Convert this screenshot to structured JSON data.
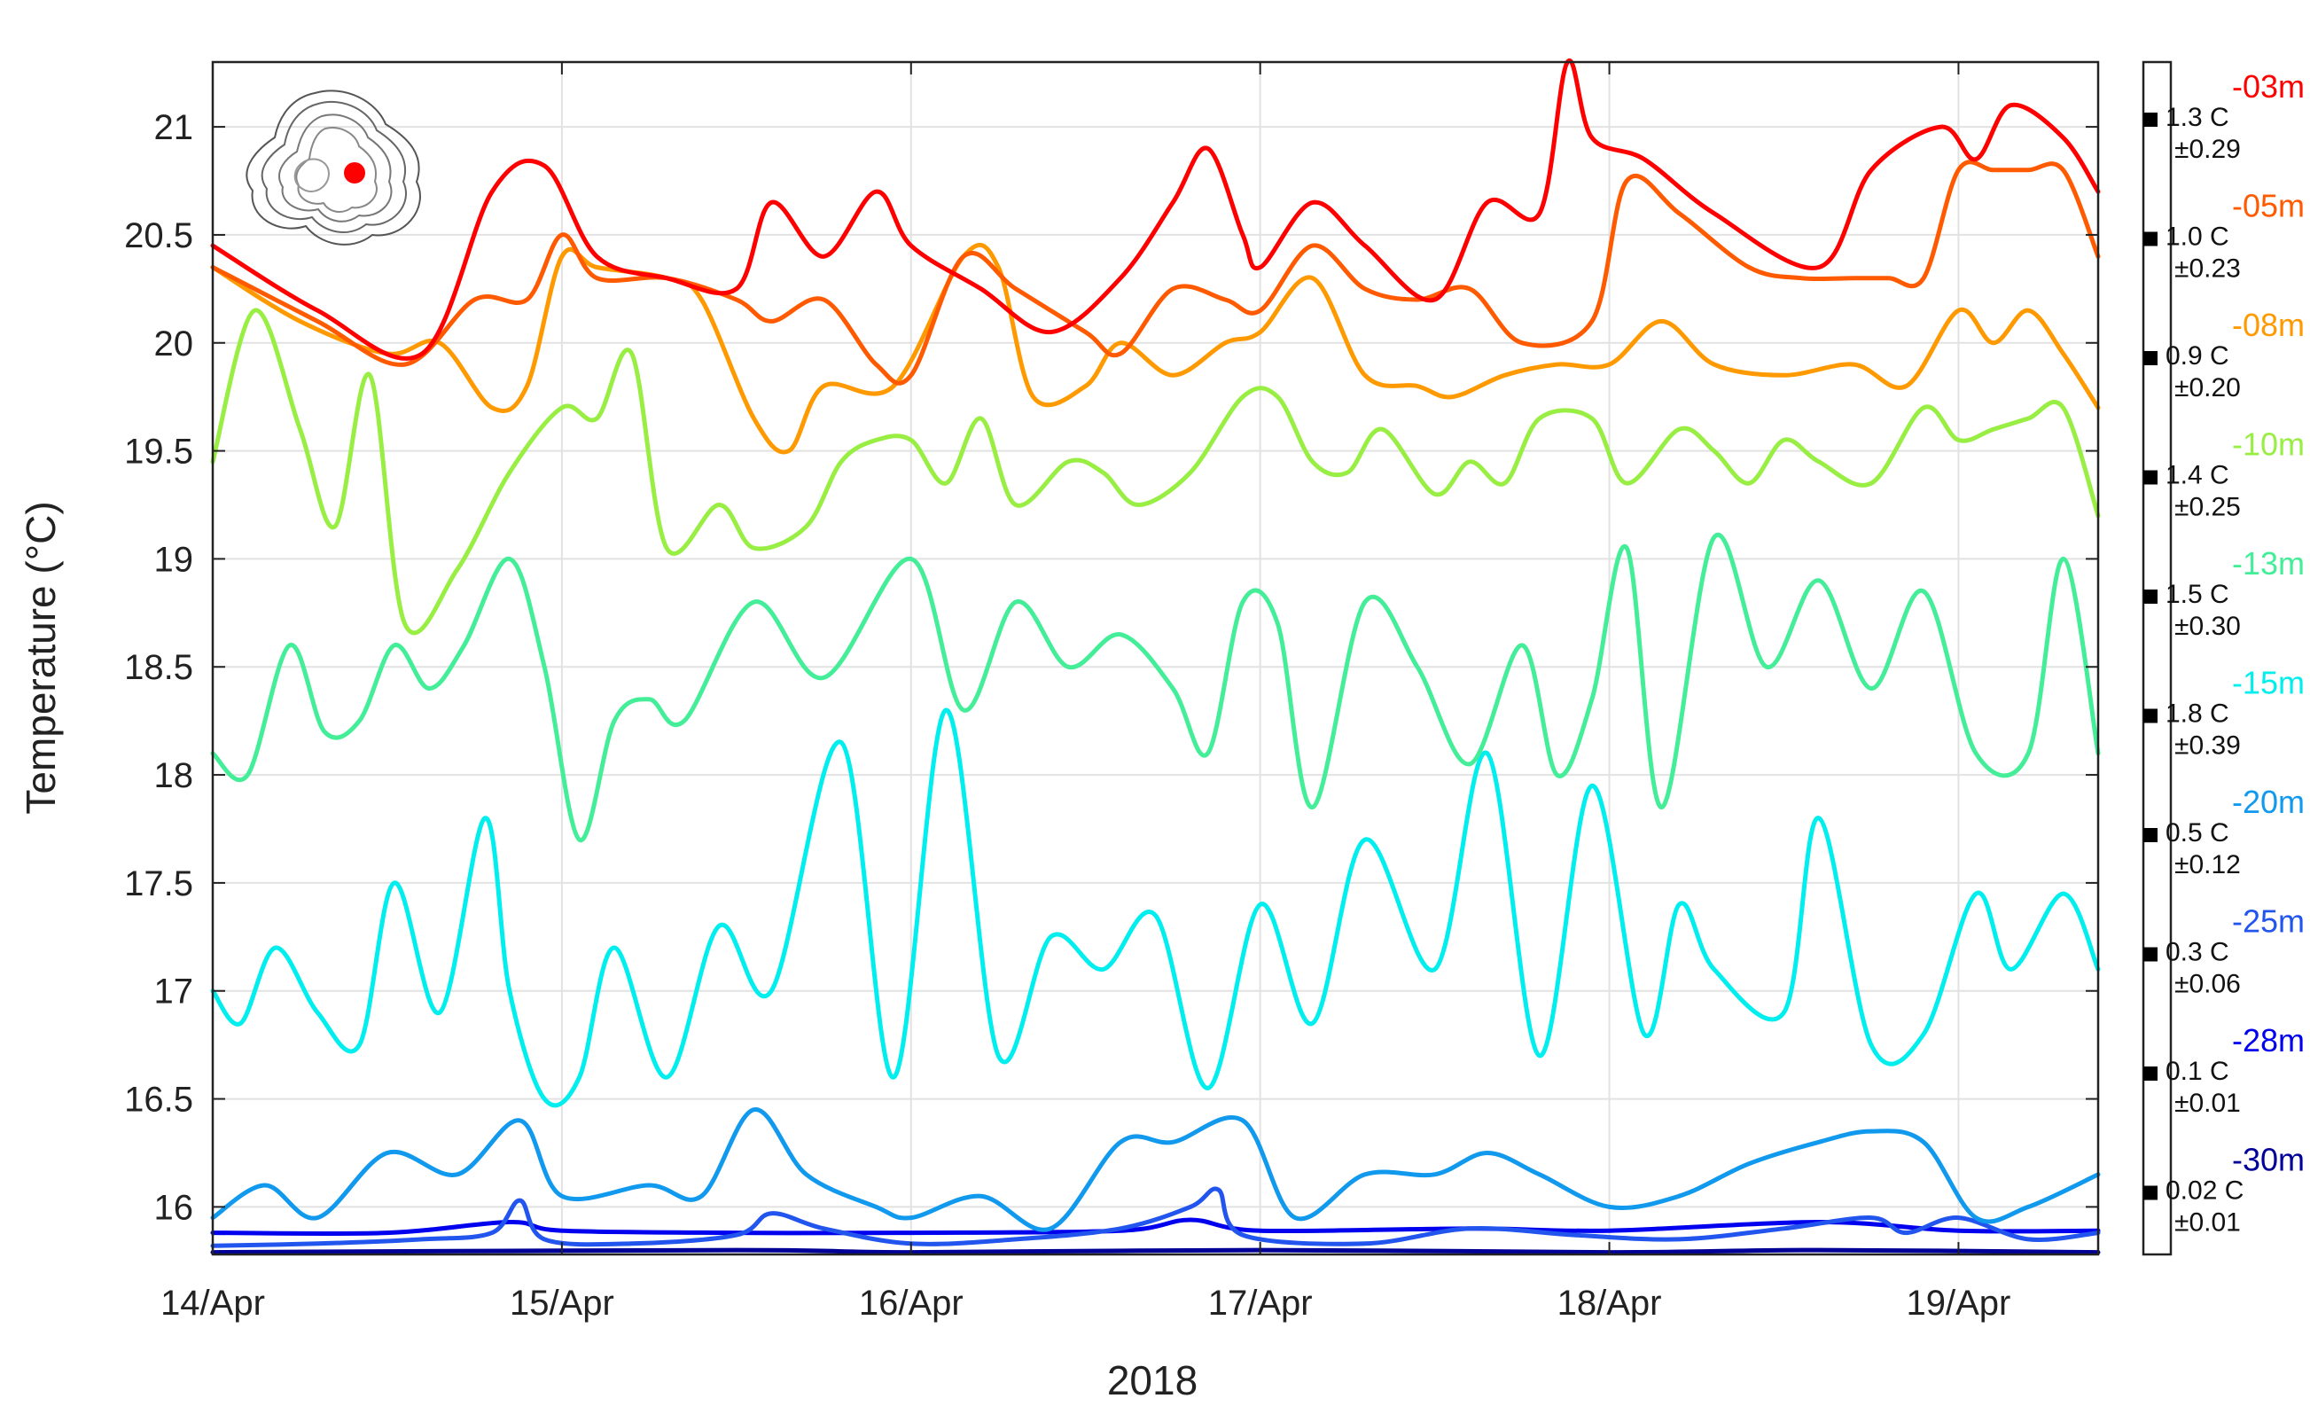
{
  "chart_data": {
    "type": "line",
    "title": "",
    "xlabel": "2018",
    "ylabel": "Temperature (°C)",
    "xlim": [
      0,
      5.4
    ],
    "ylim": [
      15.78,
      21.3
    ],
    "x_ticks": [
      {
        "value": 0,
        "label": "14/Apr"
      },
      {
        "value": 1,
        "label": "15/Apr"
      },
      {
        "value": 2,
        "label": "16/Apr"
      },
      {
        "value": 3,
        "label": "17/Apr"
      },
      {
        "value": 4,
        "label": "18/Apr"
      },
      {
        "value": 5,
        "label": "19/Apr"
      }
    ],
    "y_ticks": [
      {
        "value": 16,
        "label": "16"
      },
      {
        "value": 16.5,
        "label": "16.5"
      },
      {
        "value": 17,
        "label": "17"
      },
      {
        "value": 17.5,
        "label": "17.5"
      },
      {
        "value": 18,
        "label": "18"
      },
      {
        "value": 18.5,
        "label": "18.5"
      },
      {
        "value": 19,
        "label": "19"
      },
      {
        "value": 19.5,
        "label": "19.5"
      },
      {
        "value": 20,
        "label": "20"
      },
      {
        "value": 20.5,
        "label": "20.5"
      },
      {
        "value": 21,
        "label": "21"
      }
    ],
    "grid": true,
    "inset_marker": {
      "color": "#ff0000",
      "icon": "lake-bathymetry-icon"
    },
    "series": [
      {
        "name": "-03m",
        "color": "#ff0000",
        "range": "1.3 C",
        "std": "±0.29",
        "range_value": 1.3,
        "x": [
          0,
          0.3,
          0.6,
          0.8,
          0.95,
          1.1,
          1.3,
          1.5,
          1.6,
          1.75,
          1.9,
          2.0,
          2.2,
          2.4,
          2.6,
          2.75,
          2.85,
          2.95,
          3.0,
          3.15,
          3.3,
          3.5,
          3.65,
          3.8,
          3.88,
          3.95,
          4.1,
          4.3,
          4.6,
          4.75,
          4.95,
          5.05,
          5.15,
          5.3,
          5.4
        ],
        "y": [
          20.45,
          20.15,
          19.95,
          20.7,
          20.82,
          20.4,
          20.3,
          20.25,
          20.65,
          20.4,
          20.7,
          20.45,
          20.25,
          20.05,
          20.3,
          20.65,
          20.9,
          20.5,
          20.35,
          20.65,
          20.45,
          20.2,
          20.65,
          20.6,
          21.3,
          20.95,
          20.85,
          20.6,
          20.35,
          20.8,
          21.0,
          20.85,
          21.1,
          20.95,
          20.7
        ]
      },
      {
        "name": "-05m",
        "color": "#ff5a00",
        "range": "1.0 C",
        "std": "±0.23",
        "range_value": 1.0,
        "x": [
          0,
          0.3,
          0.55,
          0.75,
          0.9,
          1.0,
          1.1,
          1.3,
          1.5,
          1.6,
          1.75,
          1.9,
          2.0,
          2.15,
          2.3,
          2.5,
          2.6,
          2.75,
          2.9,
          3.0,
          3.15,
          3.3,
          3.45,
          3.6,
          3.75,
          3.95,
          4.05,
          4.2,
          4.4,
          4.55,
          4.7,
          4.8,
          4.9,
          5.0,
          5.1,
          5.2,
          5.3,
          5.4
        ],
        "y": [
          20.35,
          20.1,
          19.9,
          20.2,
          20.2,
          20.5,
          20.3,
          20.3,
          20.2,
          20.1,
          20.2,
          19.9,
          19.85,
          20.4,
          20.25,
          20.05,
          19.95,
          20.25,
          20.2,
          20.15,
          20.45,
          20.25,
          20.2,
          20.25,
          20.0,
          20.1,
          20.75,
          20.6,
          20.35,
          20.3,
          20.3,
          20.3,
          20.3,
          20.8,
          20.8,
          20.8,
          20.8,
          20.4
        ]
      },
      {
        "name": "-08m",
        "color": "#ff9900",
        "range": "0.9 C",
        "std": "±0.20",
        "range_value": 0.9,
        "x": [
          0,
          0.25,
          0.5,
          0.65,
          0.8,
          0.9,
          1.0,
          1.1,
          1.3,
          1.4,
          1.55,
          1.65,
          1.75,
          1.95,
          2.15,
          2.25,
          2.35,
          2.5,
          2.6,
          2.75,
          2.9,
          3.0,
          3.15,
          3.3,
          3.45,
          3.55,
          3.7,
          3.85,
          4.0,
          4.15,
          4.3,
          4.5,
          4.7,
          4.85,
          5.0,
          5.1,
          5.2,
          5.3,
          5.4
        ],
        "y": [
          20.35,
          20.1,
          19.95,
          20.0,
          19.7,
          19.8,
          20.4,
          20.35,
          20.3,
          20.2,
          19.65,
          19.5,
          19.8,
          19.8,
          20.4,
          20.35,
          19.75,
          19.8,
          20.0,
          19.85,
          20.0,
          20.05,
          20.3,
          19.85,
          19.8,
          19.75,
          19.85,
          19.9,
          19.9,
          20.1,
          19.9,
          19.85,
          19.9,
          19.8,
          20.15,
          20.0,
          20.15,
          19.95,
          19.7
        ]
      },
      {
        "name": "-10m",
        "color": "#99ee44",
        "range": "1.4 C",
        "std": "±0.25",
        "range_value": 1.4,
        "x": [
          0,
          0.12,
          0.25,
          0.35,
          0.45,
          0.55,
          0.7,
          0.85,
          1.0,
          1.1,
          1.2,
          1.3,
          1.45,
          1.55,
          1.7,
          1.8,
          1.9,
          2.0,
          2.1,
          2.2,
          2.3,
          2.45,
          2.55,
          2.65,
          2.8,
          2.95,
          3.05,
          3.15,
          3.25,
          3.35,
          3.5,
          3.6,
          3.7,
          3.8,
          3.95,
          4.05,
          4.2,
          4.3,
          4.4,
          4.5,
          4.6,
          4.75,
          4.9,
          5.0,
          5.1,
          5.2,
          5.3,
          5.4
        ],
        "y": [
          19.45,
          20.15,
          19.6,
          19.15,
          19.85,
          18.7,
          18.95,
          19.4,
          19.7,
          19.65,
          19.95,
          19.05,
          19.25,
          19.05,
          19.15,
          19.45,
          19.55,
          19.55,
          19.35,
          19.65,
          19.25,
          19.45,
          19.4,
          19.25,
          19.4,
          19.75,
          19.75,
          19.45,
          19.4,
          19.6,
          19.3,
          19.45,
          19.35,
          19.65,
          19.65,
          19.35,
          19.6,
          19.5,
          19.35,
          19.55,
          19.45,
          19.35,
          19.7,
          19.55,
          19.6,
          19.65,
          19.7,
          19.2
        ]
      },
      {
        "name": "-13m",
        "color": "#44ee99",
        "range": "1.5 C",
        "std": "±0.30",
        "range_value": 1.5,
        "x": [
          0,
          0.1,
          0.22,
          0.32,
          0.42,
          0.52,
          0.62,
          0.72,
          0.85,
          0.95,
          1.05,
          1.15,
          1.25,
          1.35,
          1.55,
          1.75,
          2.0,
          2.15,
          2.3,
          2.45,
          2.6,
          2.75,
          2.85,
          2.95,
          3.05,
          3.15,
          3.3,
          3.45,
          3.6,
          3.75,
          3.85,
          3.95,
          4.05,
          4.15,
          4.3,
          4.45,
          4.6,
          4.75,
          4.9,
          5.05,
          5.2,
          5.3,
          5.4
        ],
        "y": [
          18.1,
          18.0,
          18.6,
          18.2,
          18.25,
          18.6,
          18.4,
          18.6,
          19.0,
          18.5,
          17.7,
          18.25,
          18.35,
          18.25,
          18.8,
          18.45,
          19.0,
          18.3,
          18.8,
          18.5,
          18.65,
          18.4,
          18.1,
          18.8,
          18.7,
          17.85,
          18.8,
          18.5,
          18.05,
          18.6,
          18.0,
          18.35,
          19.05,
          17.85,
          19.1,
          18.5,
          18.9,
          18.4,
          18.85,
          18.1,
          18.1,
          19.0,
          18.1
        ]
      },
      {
        "name": "-15m",
        "color": "#00eeee",
        "range": "1.8 C",
        "std": "±0.39",
        "range_value": 1.8,
        "x": [
          0,
          0.08,
          0.18,
          0.3,
          0.42,
          0.52,
          0.65,
          0.78,
          0.85,
          0.95,
          1.05,
          1.15,
          1.3,
          1.45,
          1.6,
          1.8,
          1.95,
          2.1,
          2.25,
          2.4,
          2.55,
          2.7,
          2.85,
          3.0,
          3.15,
          3.3,
          3.5,
          3.65,
          3.8,
          3.95,
          4.1,
          4.2,
          4.3,
          4.5,
          4.6,
          4.75,
          4.9,
          5.05,
          5.15,
          5.3,
          5.4
        ],
        "y": [
          17.0,
          16.85,
          17.2,
          16.9,
          16.75,
          17.5,
          16.9,
          17.8,
          17.0,
          16.5,
          16.6,
          17.2,
          16.6,
          17.3,
          17.0,
          18.15,
          16.6,
          18.3,
          16.7,
          17.25,
          17.1,
          17.35,
          16.55,
          17.4,
          16.85,
          17.7,
          17.1,
          18.1,
          16.7,
          17.95,
          16.8,
          17.4,
          17.1,
          16.9,
          17.8,
          16.75,
          16.8,
          17.45,
          17.1,
          17.45,
          17.1
        ]
      },
      {
        "name": "-20m",
        "color": "#1199ee",
        "range": "0.5 C",
        "std": "±0.12",
        "range_value": 0.5,
        "x": [
          0,
          0.15,
          0.3,
          0.5,
          0.7,
          0.88,
          1.0,
          1.25,
          1.4,
          1.55,
          1.7,
          1.9,
          2.0,
          2.2,
          2.4,
          2.6,
          2.75,
          2.95,
          3.1,
          3.3,
          3.5,
          3.65,
          3.8,
          4.0,
          4.2,
          4.4,
          4.6,
          4.75,
          4.9,
          5.05,
          5.2,
          5.4
        ],
        "y": [
          15.95,
          16.1,
          15.95,
          16.25,
          16.15,
          16.4,
          16.05,
          16.1,
          16.05,
          16.45,
          16.15,
          16.0,
          15.95,
          16.05,
          15.9,
          16.3,
          16.3,
          16.4,
          15.95,
          16.15,
          16.15,
          16.25,
          16.15,
          16.0,
          16.05,
          16.2,
          16.3,
          16.35,
          16.3,
          15.95,
          16.0,
          16.15
        ]
      },
      {
        "name": "-25m",
        "color": "#2255ee",
        "range": "0.3 C",
        "std": "±0.06",
        "range_value": 0.3,
        "x": [
          0,
          0.3,
          0.6,
          0.8,
          0.88,
          0.95,
          1.2,
          1.5,
          1.6,
          1.75,
          2.0,
          2.3,
          2.6,
          2.8,
          2.88,
          2.95,
          3.3,
          3.6,
          3.9,
          4.2,
          4.5,
          4.75,
          4.85,
          5.0,
          5.2,
          5.4
        ],
        "y": [
          15.82,
          15.83,
          15.85,
          15.88,
          16.03,
          15.85,
          15.83,
          15.87,
          15.97,
          15.9,
          15.83,
          15.85,
          15.9,
          16.0,
          16.08,
          15.87,
          15.83,
          15.9,
          15.87,
          15.85,
          15.9,
          15.95,
          15.88,
          15.95,
          15.85,
          15.88
        ]
      },
      {
        "name": "-28m",
        "color": "#0000ee",
        "range": "0.1 C",
        "std": "±0.01",
        "range_value": 0.1,
        "x": [
          0,
          0.5,
          0.85,
          1.0,
          1.5,
          2.0,
          2.6,
          2.8,
          3.0,
          3.6,
          4.0,
          4.6,
          5.0,
          5.4
        ],
        "y": [
          15.88,
          15.88,
          15.93,
          15.89,
          15.88,
          15.88,
          15.89,
          15.94,
          15.89,
          15.9,
          15.89,
          15.93,
          15.89,
          15.89
        ]
      },
      {
        "name": "-30m",
        "color": "#000099",
        "range": "0.02 C",
        "std": "±0.01",
        "range_value": 0.02,
        "x": [
          0,
          1.5,
          2.0,
          3.0,
          4.0,
          4.6,
          5.4
        ],
        "y": [
          15.79,
          15.8,
          15.79,
          15.8,
          15.79,
          15.8,
          15.79
        ]
      }
    ]
  }
}
